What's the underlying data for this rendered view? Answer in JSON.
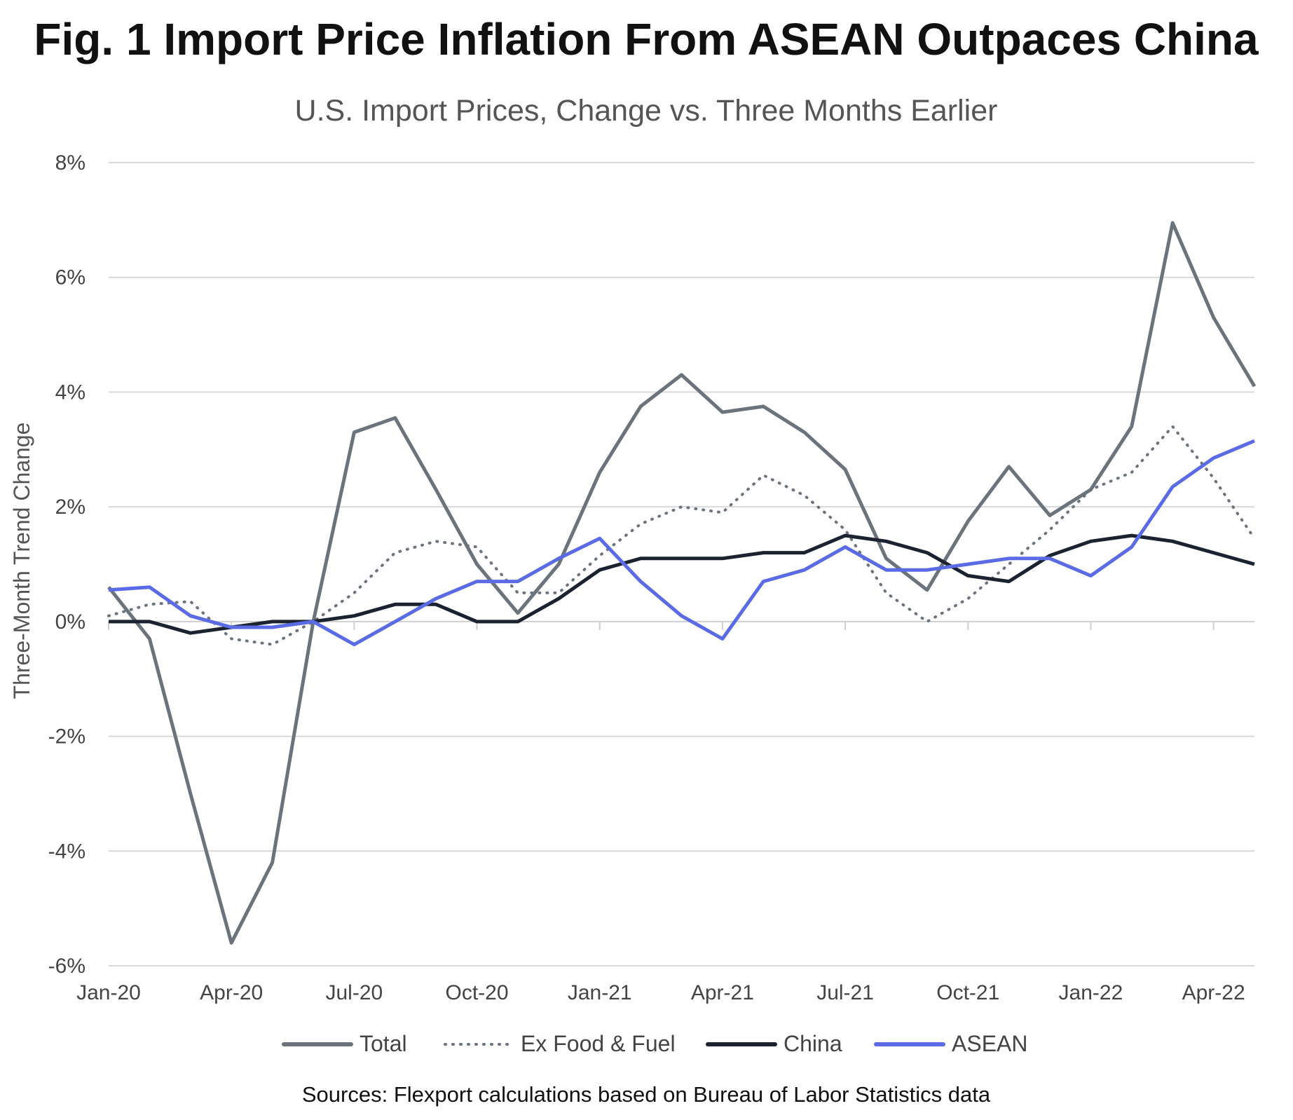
{
  "chart_data": {
    "type": "line",
    "title": "Fig. 1 Import Price Inflation From ASEAN Outpaces China",
    "subtitle": "U.S. Import Prices, Change vs. Three Months Earlier",
    "ylabel": "Three-Month Trend Change",
    "xlabel": "",
    "ylim": [
      -6,
      8
    ],
    "yticks": [
      -6,
      -4,
      -2,
      0,
      2,
      4,
      6,
      8
    ],
    "ytick_labels": [
      "-6%",
      "-4%",
      "-2%",
      "0%",
      "2%",
      "4%",
      "6%",
      "8%"
    ],
    "xtick_labels": [
      "Jan-20",
      "Apr-20",
      "Jul-20",
      "Oct-20",
      "Jan-21",
      "Apr-21",
      "Jul-21",
      "Oct-21",
      "Jan-22",
      "Apr-22"
    ],
    "x": [
      "Jan-20",
      "Feb-20",
      "Mar-20",
      "Apr-20",
      "May-20",
      "Jun-20",
      "Jul-20",
      "Aug-20",
      "Sep-20",
      "Oct-20",
      "Nov-20",
      "Dec-20",
      "Jan-21",
      "Feb-21",
      "Mar-21",
      "Apr-21",
      "May-21",
      "Jun-21",
      "Jul-21",
      "Aug-21",
      "Sep-21",
      "Oct-21",
      "Nov-21",
      "Dec-21",
      "Jan-22",
      "Feb-22",
      "Mar-22",
      "Apr-22",
      "May-22"
    ],
    "series": [
      {
        "name": "Total",
        "color": "#6b737d",
        "dash": "solid",
        "values": [
          0.6,
          -0.3,
          -3.0,
          -5.6,
          -4.2,
          0.0,
          3.3,
          3.55,
          2.3,
          1.0,
          0.15,
          1.0,
          2.6,
          3.75,
          4.3,
          3.65,
          3.75,
          3.3,
          2.65,
          1.1,
          0.55,
          1.75,
          2.7,
          1.85,
          2.3,
          3.4,
          6.95,
          5.3,
          4.1
        ]
      },
      {
        "name": "Ex Food & Fuel",
        "color": "#6b737d",
        "dash": "dotted",
        "values": [
          0.1,
          0.3,
          0.35,
          -0.3,
          -0.4,
          0.0,
          0.5,
          1.2,
          1.4,
          1.3,
          0.5,
          0.5,
          1.15,
          1.7,
          2.0,
          1.9,
          2.55,
          2.2,
          1.6,
          0.5,
          0.0,
          0.4,
          1.0,
          1.6,
          2.3,
          2.6,
          3.4,
          2.5,
          1.45
        ]
      },
      {
        "name": "China",
        "color": "#1b2331",
        "dash": "solid",
        "values": [
          0.0,
          0.0,
          -0.2,
          -0.1,
          0.0,
          0.0,
          0.1,
          0.3,
          0.3,
          0.0,
          0.0,
          0.4,
          0.9,
          1.1,
          1.1,
          1.1,
          1.2,
          1.2,
          1.5,
          1.4,
          1.2,
          0.8,
          0.7,
          1.15,
          1.4,
          1.5,
          1.4,
          1.2,
          1.0
        ]
      },
      {
        "name": "ASEAN",
        "color": "#5b6be6",
        "dash": "solid",
        "values": [
          0.55,
          0.6,
          0.1,
          -0.1,
          -0.1,
          0.0,
          -0.4,
          0.0,
          0.4,
          0.7,
          0.7,
          1.1,
          1.45,
          0.7,
          0.1,
          -0.3,
          0.7,
          0.9,
          1.3,
          0.9,
          0.9,
          1.0,
          1.1,
          1.1,
          0.8,
          1.3,
          2.35,
          2.85,
          3.15
        ]
      }
    ],
    "legend_position": "bottom",
    "source": "Sources: Flexport calculations based on Bureau of Labor Statistics data"
  }
}
